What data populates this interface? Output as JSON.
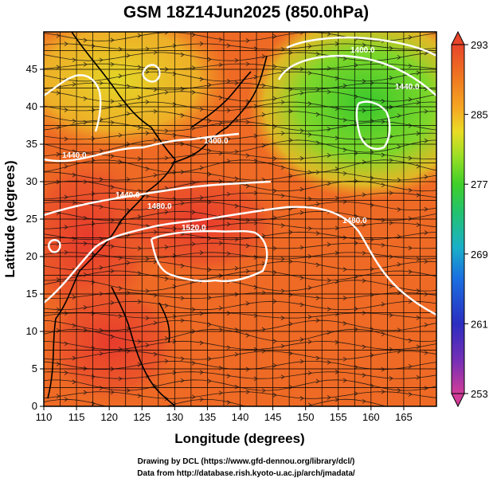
{
  "title": "GSM 18Z14Jun2025 (850.0hPa)",
  "xlabel": "Longitude (degrees)",
  "ylabel": "Latitude  (degrees)",
  "x_ticks": [
    "110",
    "115",
    "120",
    "125",
    "130",
    "135",
    "140",
    "145",
    "150",
    "155",
    "160",
    "165"
  ],
  "y_ticks": [
    "0",
    "5",
    "10",
    "15",
    "20",
    "25",
    "30",
    "35",
    "40",
    "45"
  ],
  "colorbar": {
    "labels": [
      "293",
      "285",
      "277",
      "269",
      "261",
      "253"
    ],
    "min": 253,
    "max": 293,
    "colors": [
      "#d13c98",
      "#7a2fb5",
      "#2b2ec0",
      "#1a6fe0",
      "#1ab0c8",
      "#23c26e",
      "#3fcf2a",
      "#9adf25",
      "#e9dc25",
      "#f5a623",
      "#f07a20",
      "#e8452b"
    ]
  },
  "contour_labels": [
    "1400.0",
    "1440.0",
    "1480.0",
    "1520.0",
    "1400.0",
    "1440.0",
    "1480.0",
    "1520.0"
  ],
  "credits": {
    "line1": "Drawing by DCL (https://www.gfd-dennou.org/library/dcl/)",
    "line2": "Data from http://database.rish.kyoto-u.ac.jp/arch/jmadata/"
  },
  "chart_data": {
    "type": "heatmap",
    "title": "GSM 18Z14Jun2025 (850.0hPa)",
    "xlabel": "Longitude (degrees)",
    "ylabel": "Latitude  (degrees)",
    "xlim": [
      110,
      170
    ],
    "ylim": [
      0,
      50
    ],
    "color_range": [
      253,
      293
    ],
    "contour_levels": [
      1400.0,
      1440.0,
      1480.0,
      1520.0
    ],
    "grid": true
  }
}
